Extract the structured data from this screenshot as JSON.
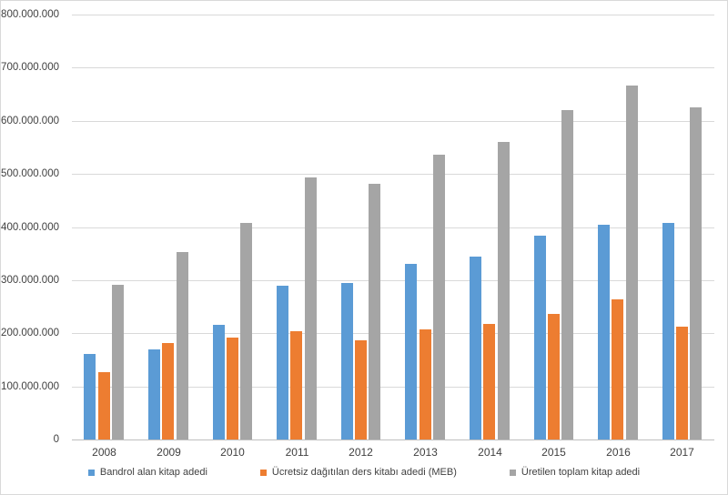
{
  "chart_data": {
    "type": "bar",
    "categories": [
      "2008",
      "2009",
      "2010",
      "2011",
      "2012",
      "2013",
      "2014",
      "2015",
      "2016",
      "2017"
    ],
    "series": [
      {
        "name": "Bandrol alan kitap adedi",
        "color": "#5B9BD5",
        "values": [
          161000000,
          170000000,
          215000000,
          290000000,
          294000000,
          331000000,
          344000000,
          383000000,
          404000000,
          407000000
        ]
      },
      {
        "name": "Ücretsiz dağıtılan ders kitabı adedi (MEB)",
        "color": "#ED7D31",
        "values": [
          127000000,
          182000000,
          192000000,
          204000000,
          187000000,
          207000000,
          217000000,
          237000000,
          263000000,
          213000000
        ]
      },
      {
        "name": "Üretilen toplam kitap adedi",
        "color": "#A5A5A5",
        "values": [
          292000000,
          353000000,
          407000000,
          493000000,
          481000000,
          537000000,
          561000000,
          620000000,
          667000000,
          626000000
        ]
      }
    ],
    "ylim": [
      0,
      800000000
    ],
    "ytick_step": 100000000,
    "ytick_labels": [
      "0",
      "100.000.000",
      "200.000.000",
      "300.000.000",
      "400.000.000",
      "500.000.000",
      "600.000.000",
      "700.000.000",
      "800.000.000"
    ],
    "grid": true,
    "legend_position": "bottom"
  },
  "style": {
    "background": "#FFFFFF",
    "border_color": "#D9D9D9",
    "gridline_color": "#D9D9D9",
    "axis_line_color": "#BFBFBF",
    "text_color": "#404040"
  }
}
